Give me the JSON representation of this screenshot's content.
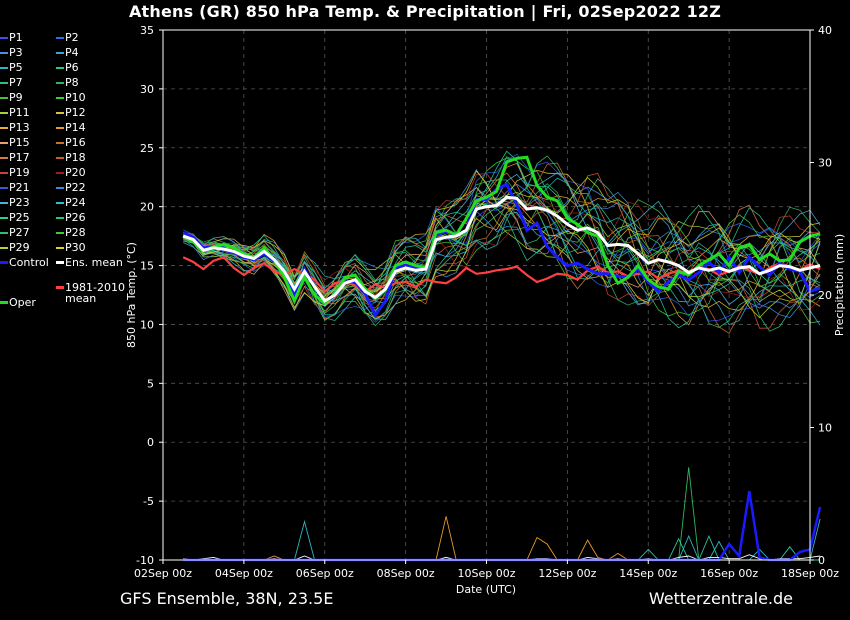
{
  "header": {
    "title": "Athens  (GR)  850 hPa Temp. & Precipitation | Fri, 02Sep2022 12Z"
  },
  "footer": {
    "model": "GFS Ensemble, 38N, 23.5E",
    "site": "Wetterzentrale.de"
  },
  "legend": [
    {
      "label": "P1",
      "color": "#3b4ef5"
    },
    {
      "label": "P2",
      "color": "#2f6cf0"
    },
    {
      "label": "P3",
      "color": "#4b8de8"
    },
    {
      "label": "P4",
      "color": "#3aa4d8"
    },
    {
      "label": "P5",
      "color": "#2ab6c4"
    },
    {
      "label": "P6",
      "color": "#28c39a"
    },
    {
      "label": "P7",
      "color": "#2cc07a"
    },
    {
      "label": "P8",
      "color": "#2fb65a"
    },
    {
      "label": "P9",
      "color": "#4ac03a"
    },
    {
      "label": "P10",
      "color": "#35d22e"
    },
    {
      "label": "P11",
      "color": "#a8d23a"
    },
    {
      "label": "P12",
      "color": "#d6c43a"
    },
    {
      "label": "P13",
      "color": "#e8b030"
    },
    {
      "label": "P14",
      "color": "#e89a2a"
    },
    {
      "label": "P15",
      "color": "#e8a070"
    },
    {
      "label": "P16",
      "color": "#c8702a"
    },
    {
      "label": "P17",
      "color": "#d87a40"
    },
    {
      "label": "P18",
      "color": "#d05a30"
    },
    {
      "label": "P19",
      "color": "#d04030"
    },
    {
      "label": "P20",
      "color": "#a02018"
    },
    {
      "label": "P21",
      "color": "#2f5cd8"
    },
    {
      "label": "P22",
      "color": "#3a8ae0"
    },
    {
      "label": "P23",
      "color": "#4fb0e0"
    },
    {
      "label": "P24",
      "color": "#2ac0d0"
    },
    {
      "label": "P25",
      "color": "#20d0a0"
    },
    {
      "label": "P26",
      "color": "#20c880"
    },
    {
      "label": "P27",
      "color": "#30c060"
    },
    {
      "label": "P28",
      "color": "#40c840"
    },
    {
      "label": "P29",
      "color": "#b0d830"
    },
    {
      "label": "P30",
      "color": "#e0d020"
    },
    {
      "label": "Control",
      "color": "#1a1aff"
    },
    {
      "label": "Ens. mean",
      "color": "#ffffff"
    },
    {
      "label": "Oper",
      "color": "#22dd22"
    },
    {
      "label": "1981-2010 mean",
      "color": "#ff4040"
    }
  ],
  "chart_data": {
    "type": "line",
    "ylabel": "850 hPa Temp. (°C)",
    "y2label": "Precipitation (mm)",
    "xlabel": "Date (UTC)",
    "ylim": [
      -10,
      35
    ],
    "y2lim": [
      0,
      40
    ],
    "yticks": [
      -10,
      -5,
      0,
      5,
      10,
      15,
      20,
      25,
      30,
      35
    ],
    "y2ticks": [
      0,
      10,
      20,
      30,
      40
    ],
    "xticks": [
      "02Sep 00z",
      "04Sep 00z",
      "06Sep 00z",
      "08Sep 00z",
      "10Sep 00z",
      "12Sep 00z",
      "14Sep 00z",
      "16Sep 00z",
      "18Sep 00z"
    ],
    "grid": true,
    "x_start_hours": 12,
    "x_step_hours": 6,
    "x_range_hours": [
      0,
      384
    ],
    "ens_mean": [
      17.5,
      17.2,
      16.3,
      16.5,
      16.4,
      16.2,
      15.8,
      15.6,
      16.2,
      15.5,
      14.5,
      13.0,
      14.5,
      13.2,
      12.0,
      12.5,
      13.5,
      13.8,
      12.8,
      12.3,
      13.0,
      14.5,
      14.8,
      14.6,
      14.7,
      17.2,
      17.4,
      17.5,
      18.0,
      19.8,
      20.0,
      20.1,
      20.8,
      20.7,
      19.8,
      19.9,
      19.7,
      19.2,
      18.5,
      18.0,
      18.2,
      17.8,
      16.7,
      16.8,
      16.7,
      16.0,
      15.2,
      15.5,
      15.3,
      15.0,
      14.4,
      14.8,
      14.6,
      14.8,
      14.5,
      14.8,
      14.9,
      14.3,
      14.6,
      15.0,
      14.9,
      14.6,
      14.8,
      15.0
    ],
    "control": [
      17.8,
      17.4,
      16.5,
      16.6,
      16.3,
      16.1,
      15.7,
      15.5,
      16.0,
      15.4,
      14.5,
      12.5,
      14.7,
      13.2,
      11.9,
      12.5,
      13.6,
      13.6,
      12.6,
      10.8,
      12.0,
      14.8,
      15.1,
      14.8,
      14.7,
      17.6,
      17.9,
      17.6,
      18.0,
      20.6,
      20.6,
      21.5,
      21.9,
      20.2,
      18.0,
      18.6,
      16.6,
      15.7,
      15.0,
      15.2,
      14.7,
      14.3,
      14.3,
      14.1,
      14.0,
      14.7,
      13.6,
      12.8,
      13.6,
      14.2,
      13.8,
      14.4,
      15.3,
      14.4,
      15.7,
      14.4,
      15.7,
      14.9,
      14.2,
      15.2,
      14.7,
      14.5,
      12.8,
      13.1
    ],
    "oper": [
      17.5,
      17.0,
      16.2,
      16.6,
      16.8,
      16.5,
      16.0,
      15.7,
      16.5,
      15.5,
      14.0,
      12.0,
      14.0,
      12.5,
      11.8,
      12.6,
      14.0,
      14.2,
      13.0,
      12.2,
      13.0,
      15.0,
      15.3,
      15.0,
      14.8,
      17.8,
      18.0,
      17.6,
      19.0,
      20.5,
      20.8,
      21.3,
      23.8,
      24.1,
      24.2,
      21.8,
      20.8,
      20.5,
      19.0,
      18.5,
      17.8,
      17.5,
      15.0,
      13.5,
      14.0,
      15.0,
      13.8,
      13.2,
      13.0,
      14.5,
      14.2,
      15.0,
      15.5,
      16.0,
      15.0,
      16.5,
      16.8,
      15.5,
      16.0,
      15.4,
      15.5,
      17.0,
      17.5,
      17.7
    ],
    "clim_mean": [
      15.7,
      15.3,
      14.7,
      15.4,
      15.7,
      14.8,
      14.2,
      14.8,
      15.2,
      14.5,
      14.2,
      14.7,
      14.3,
      13.8,
      12.8,
      13.5,
      13.7,
      13.3,
      12.8,
      13.4,
      13.1,
      13.5,
      13.6,
      13.2,
      13.8,
      13.6,
      13.5,
      14.0,
      14.8,
      14.3,
      14.4,
      14.6,
      14.7,
      14.9,
      14.2,
      13.6,
      13.9,
      14.3,
      14.2,
      13.8,
      14.6,
      14.9,
      14.4,
      14.5,
      14.1,
      14.3,
      14.5,
      13.9,
      14.3,
      14.6,
      14.2,
      14.9,
      14.7,
      14.2,
      14.5,
      15.0,
      14.6,
      14.3,
      14.8,
      15.2,
      14.9,
      14.6,
      15.1,
      14.7
    ],
    "precip_control": [
      0,
      0,
      0,
      0,
      0,
      0,
      0,
      0,
      0,
      0,
      0,
      0,
      0,
      0,
      0,
      0,
      0,
      0,
      0,
      0,
      0,
      0,
      0,
      0,
      0,
      0,
      0,
      0,
      0,
      0,
      0,
      0,
      0,
      0,
      0,
      0,
      0,
      0,
      0,
      0,
      0,
      0,
      0,
      0,
      0,
      0,
      0,
      0,
      0,
      0,
      0,
      0,
      0,
      0,
      1.2,
      0.3,
      5.2,
      0.2,
      0,
      0,
      0,
      0.6,
      0.8,
      4.0
    ],
    "precip_spikes": [
      {
        "color": "#e89a2a",
        "values": [
          0,
          0,
          0,
          0,
          0,
          0,
          0,
          0,
          0,
          0.3,
          0,
          0,
          0,
          0,
          0,
          0,
          0,
          0,
          0,
          0,
          0,
          0,
          0,
          0,
          0,
          0,
          3.3,
          0,
          0,
          0,
          0,
          0,
          0,
          0,
          0,
          1.7,
          1.2,
          0,
          0,
          0,
          1.5,
          0.2,
          0,
          0.5,
          0,
          0,
          0,
          0,
          0,
          0,
          0,
          0,
          0,
          0,
          0,
          0,
          0,
          0,
          0,
          0,
          0,
          0,
          0,
          0
        ]
      },
      {
        "color": "#2ab6c4",
        "values": [
          0,
          0,
          0,
          0,
          0,
          0,
          0,
          0,
          0,
          0,
          0,
          0,
          2.9,
          0,
          0,
          0,
          0,
          0,
          0,
          0,
          0,
          0,
          0,
          0,
          0,
          0,
          0,
          0,
          0,
          0,
          0,
          0,
          0,
          0,
          0,
          0,
          0,
          0,
          0,
          0,
          0,
          0,
          0,
          0,
          0,
          0,
          0,
          0,
          0,
          0,
          1.8,
          0,
          0,
          1.4,
          0,
          0,
          0,
          0.8,
          0,
          0,
          0,
          0,
          0,
          3.1
        ]
      },
      {
        "color": "#2fb65a",
        "values": [
          0,
          0,
          0,
          0,
          0,
          0,
          0,
          0,
          0,
          0,
          0,
          0,
          0,
          0,
          0,
          0,
          0,
          0,
          0,
          0,
          0,
          0,
          0,
          0,
          0,
          0,
          0,
          0,
          0,
          0,
          0,
          0,
          0,
          0,
          0,
          0,
          0,
          0,
          0,
          0,
          0,
          0,
          0,
          0,
          0,
          0,
          0,
          0,
          0,
          0,
          7.0,
          0,
          0,
          0,
          0,
          0,
          5.0,
          0,
          0,
          0,
          0,
          0,
          0,
          0
        ]
      },
      {
        "color": "#28c39a",
        "values": [
          0,
          0,
          0,
          0,
          0,
          0,
          0,
          0,
          0,
          0,
          0,
          0,
          0,
          0,
          0,
          0,
          0,
          0,
          0,
          0,
          0,
          0,
          0,
          0,
          0,
          0,
          0,
          0,
          0,
          0,
          0,
          0,
          0,
          0,
          0,
          0,
          0,
          0,
          0,
          0,
          0,
          0,
          0,
          0,
          0,
          0,
          0.8,
          0,
          0,
          1.6,
          0,
          0,
          1.8,
          0,
          0,
          0,
          0,
          0,
          0,
          0,
          1.0,
          0,
          0,
          0
        ]
      },
      {
        "color": "#ffffff",
        "values": [
          0.1,
          0,
          0.1,
          0.2,
          0,
          0,
          0,
          0,
          0,
          0.1,
          0,
          0,
          0.3,
          0,
          0,
          0,
          0,
          0,
          0,
          0,
          0,
          0,
          0,
          0,
          0,
          0,
          0.2,
          0,
          0,
          0,
          0,
          0,
          0,
          0,
          0,
          0.1,
          0.1,
          0,
          0,
          0,
          0.2,
          0.1,
          0,
          0.1,
          0,
          0,
          0.1,
          0,
          0,
          0.2,
          0.3,
          0,
          0.2,
          0.2,
          0.1,
          0.1,
          0.4,
          0.1,
          0,
          0.1,
          0.1,
          0.1,
          0.2,
          0.3
        ]
      }
    ],
    "member_colors": [
      "#3b4ef5",
      "#2f6cf0",
      "#4b8de8",
      "#3aa4d8",
      "#2ab6c4",
      "#28c39a",
      "#2cc07a",
      "#2fb65a",
      "#4ac03a",
      "#35d22e",
      "#a8d23a",
      "#d6c43a",
      "#e8b030",
      "#e89a2a",
      "#e8a070",
      "#c8702a",
      "#d87a40",
      "#d05a30",
      "#d04030",
      "#a02018",
      "#2f5cd8",
      "#3a8ae0",
      "#4fb0e0",
      "#2ac0d0",
      "#20d0a0",
      "#20c880",
      "#30c060",
      "#40c840",
      "#b0d830",
      "#e0d020"
    ]
  }
}
